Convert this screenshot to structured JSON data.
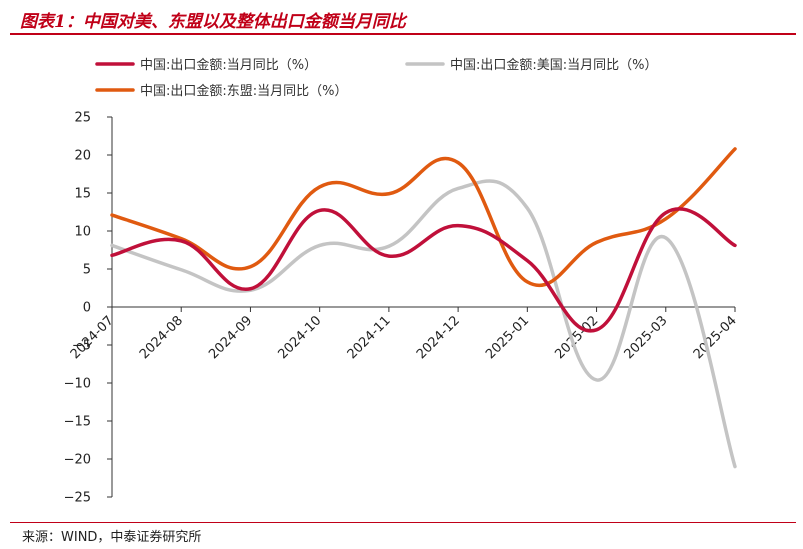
{
  "figure": {
    "title": "图表1：中国对美、东盟以及整体出口金额当月同比",
    "source": "来源：WIND，中泰证券研究所"
  },
  "chart_data": {
    "type": "line",
    "title": "",
    "xlabel": "",
    "ylabel": "",
    "categories": [
      "2024-07",
      "2024-08",
      "2024-09",
      "2024-10",
      "2024-11",
      "2024-12",
      "2025-01",
      "2025-02",
      "2025-03",
      "2025-04"
    ],
    "ylim": [
      -25,
      25
    ],
    "yticks": [
      25,
      20,
      15,
      10,
      5,
      0,
      -5,
      -10,
      -15,
      -20,
      -25
    ],
    "grid": false,
    "legend_position": "top",
    "series": [
      {
        "name": "中国:出口金额:当月同比（%）",
        "color": "#c0103a",
        "values": [
          6.8,
          8.7,
          2.4,
          12.7,
          6.7,
          10.7,
          6.1,
          -3.0,
          12.4,
          8.1
        ]
      },
      {
        "name": "中国:出口金额:美国:当月同比（%）",
        "color": "#c4c4c4",
        "values": [
          8.1,
          4.9,
          2.2,
          8.1,
          8.0,
          15.6,
          13.0,
          -9.6,
          9.1,
          -21.0
        ]
      },
      {
        "name": "中国:出口金额:东盟:当月同比（%）",
        "color": "#e05a10",
        "values": [
          12.1,
          9.0,
          5.3,
          15.8,
          14.9,
          19.0,
          3.3,
          8.5,
          11.6,
          20.8
        ]
      }
    ]
  }
}
